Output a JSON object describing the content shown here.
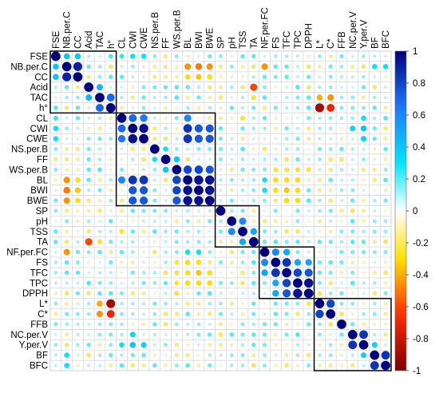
{
  "chart_data": {
    "type": "heatmap",
    "subtype": "correlation-circle-matrix",
    "title": "",
    "variables": [
      "FSE",
      "NB.per.C",
      "CC",
      "Acid",
      "TAC",
      "h°",
      "CL",
      "CWI",
      "CWE",
      "NS.per.B",
      "FF",
      "WS.per.B",
      "BL",
      "BWI",
      "BWE",
      "SP",
      "pH",
      "TSS",
      "TA",
      "NF.per.FC",
      "FS",
      "TFC",
      "TPC",
      "DPPH",
      "L*",
      "C*",
      "FFB",
      "NC.per.V",
      "Y.per.V",
      "BF",
      "BFC"
    ],
    "colorbar": {
      "min": -1,
      "max": 1,
      "ticks": [
        "1",
        "0.8",
        "0.6",
        "0.4",
        "0.2",
        "0",
        "-0.2",
        "-0.4",
        "-0.6",
        "-0.8",
        "-1"
      ]
    },
    "colors": {
      "neg_strong": "#7f0000",
      "neg_mid": "#ff2a00",
      "neg_light": "#ffe000",
      "zero": "#ffffff",
      "pos_light": "#00e5ff",
      "pos_mid": "#1e78ff",
      "pos_strong": "#00007f"
    },
    "cluster_boxes": [
      {
        "from": "FSE",
        "to": "h°"
      },
      {
        "from": "CL",
        "to": "BWE"
      },
      {
        "from": "SP",
        "to": "TA"
      },
      {
        "from": "NF.per.FC",
        "to": "DPPH"
      },
      {
        "from": "L*",
        "to": "BFC"
      }
    ],
    "strong_correlations": [
      {
        "a": "NB.per.C",
        "b": "CC",
        "r": 0.9
      },
      {
        "a": "NB.per.C",
        "b": "FSE",
        "r": 0.4
      },
      {
        "a": "CC",
        "b": "FSE",
        "r": 0.4
      },
      {
        "a": "TAC",
        "b": "h°",
        "r": 0.7
      },
      {
        "a": "TAC",
        "b": "Acid",
        "r": 0.45
      },
      {
        "a": "CL",
        "b": "CWI",
        "r": 0.7
      },
      {
        "a": "CL",
        "b": "CWE",
        "r": 0.65
      },
      {
        "a": "CWI",
        "b": "CWE",
        "r": 0.95
      },
      {
        "a": "BL",
        "b": "CL",
        "r": 0.6
      },
      {
        "a": "BL",
        "b": "CWI",
        "r": 0.85
      },
      {
        "a": "BL",
        "b": "CWE",
        "r": 0.85
      },
      {
        "a": "BWI",
        "b": "CWI",
        "r": 0.75
      },
      {
        "a": "BWI",
        "b": "CWE",
        "r": 0.75
      },
      {
        "a": "BWE",
        "b": "CWI",
        "r": 0.75
      },
      {
        "a": "BWE",
        "b": "CWE",
        "r": 0.75
      },
      {
        "a": "BL",
        "b": "WS.per.B",
        "r": 0.8
      },
      {
        "a": "BWI",
        "b": "WS.per.B",
        "r": 0.8
      },
      {
        "a": "BWE",
        "b": "WS.per.B",
        "r": 0.75
      },
      {
        "a": "BL",
        "b": "BWI",
        "r": 0.95
      },
      {
        "a": "BL",
        "b": "BWE",
        "r": 0.95
      },
      {
        "a": "BWI",
        "b": "BWE",
        "r": 0.95
      },
      {
        "a": "WS.per.B",
        "b": "FF",
        "r": 0.4
      },
      {
        "a": "NS.per.B",
        "b": "FF",
        "r": 0.3
      },
      {
        "a": "pH",
        "b": "TSS",
        "r": 0.6
      },
      {
        "a": "TSS",
        "b": "TA",
        "r": 0.5
      },
      {
        "a": "NF.per.FC",
        "b": "FS",
        "r": 0.6
      },
      {
        "a": "NF.per.FC",
        "b": "TFC",
        "r": 0.5
      },
      {
        "a": "FS",
        "b": "TFC",
        "r": 0.85
      },
      {
        "a": "TFC",
        "b": "TPC",
        "r": 0.8
      },
      {
        "a": "TFC",
        "b": "DPPH",
        "r": 0.75
      },
      {
        "a": "TPC",
        "b": "DPPH",
        "r": 0.95
      },
      {
        "a": "FS",
        "b": "TPC",
        "r": 0.5
      },
      {
        "a": "FS",
        "b": "DPPH",
        "r": 0.5
      },
      {
        "a": "L*",
        "b": "C*",
        "r": 0.8
      },
      {
        "a": "NC.per.V",
        "b": "Y.per.V",
        "r": 0.85
      },
      {
        "a": "BF",
        "b": "BFC",
        "r": 0.85
      },
      {
        "a": "BF",
        "b": "Y.per.V",
        "r": 0.35
      },
      {
        "a": "TAC",
        "b": "L*",
        "r": -0.4
      },
      {
        "a": "TAC",
        "b": "C*",
        "r": -0.45
      },
      {
        "a": "h°",
        "b": "L*",
        "r": -0.9
      },
      {
        "a": "h°",
        "b": "C*",
        "r": -0.7
      },
      {
        "a": "TA",
        "b": "Acid",
        "r": -0.6
      },
      {
        "a": "TAC",
        "b": "TA",
        "r": -0.25
      },
      {
        "a": "NB.per.C",
        "b": "BL",
        "r": -0.45
      },
      {
        "a": "NB.per.C",
        "b": "BWI",
        "r": -0.5
      },
      {
        "a": "NB.per.C",
        "b": "BWE",
        "r": -0.45
      },
      {
        "a": "CC",
        "b": "BL",
        "r": -0.3
      },
      {
        "a": "CC",
        "b": "BWI",
        "r": -0.35
      },
      {
        "a": "CC",
        "b": "BWE",
        "r": -0.3
      },
      {
        "a": "NB.per.C",
        "b": "NF.per.FC",
        "r": -0.45
      },
      {
        "a": "BL",
        "b": "NF.per.FC",
        "r": 0.3
      },
      {
        "a": "BWI",
        "b": "NF.per.FC",
        "r": 0.3
      },
      {
        "a": "BL",
        "b": "FS",
        "r": -0.3
      },
      {
        "a": "BL",
        "b": "TFC",
        "r": -0.3
      },
      {
        "a": "BL",
        "b": "TPC",
        "r": -0.3
      },
      {
        "a": "BWI",
        "b": "FS",
        "r": -0.3
      },
      {
        "a": "BWI",
        "b": "TFC",
        "r": -0.35
      },
      {
        "a": "BWI",
        "b": "TPC",
        "r": -0.3
      },
      {
        "a": "BWE",
        "b": "TFC",
        "r": -0.3
      },
      {
        "a": "BWE",
        "b": "TPC",
        "r": -0.3
      },
      {
        "a": "FS",
        "b": "WS.per.B",
        "r": -0.25
      },
      {
        "a": "TFC",
        "b": "WS.per.B",
        "r": -0.25
      },
      {
        "a": "TPC",
        "b": "WS.per.B",
        "r": -0.25
      },
      {
        "a": "DPPH",
        "b": "WS.per.B",
        "r": -0.25
      },
      {
        "a": "FS",
        "b": "NB.per.C",
        "r": 0.2
      },
      {
        "a": "TFC",
        "b": "NB.per.C",
        "r": 0.2
      },
      {
        "a": "TFC",
        "b": "CC",
        "r": 0.2
      },
      {
        "a": "CWI",
        "b": "Y.per.V",
        "r": 0.4
      },
      {
        "a": "CWI",
        "b": "NC.per.V",
        "r": 0.35
      },
      {
        "a": "CL",
        "b": "Y.per.V",
        "r": 0.3
      },
      {
        "a": "CWE",
        "b": "Y.per.V",
        "r": 0.35
      },
      {
        "a": "CWI",
        "b": "FSE",
        "r": 0.3
      },
      {
        "a": "CWE",
        "b": "FSE",
        "r": 0.3
      },
      {
        "a": "CL",
        "b": "FSE",
        "r": 0.25
      },
      {
        "a": "BF",
        "b": "NB.per.C",
        "r": 0.3
      },
      {
        "a": "BFC",
        "b": "NB.per.C",
        "r": 0.3
      },
      {
        "a": "TSS",
        "b": "CL",
        "r": -0.25
      },
      {
        "a": "TSS",
        "b": "FSE",
        "r": 0.2
      },
      {
        "a": "TA",
        "b": "FSE",
        "r": 0.2
      },
      {
        "a": "pH",
        "b": "h°",
        "r": 0.2
      }
    ]
  }
}
